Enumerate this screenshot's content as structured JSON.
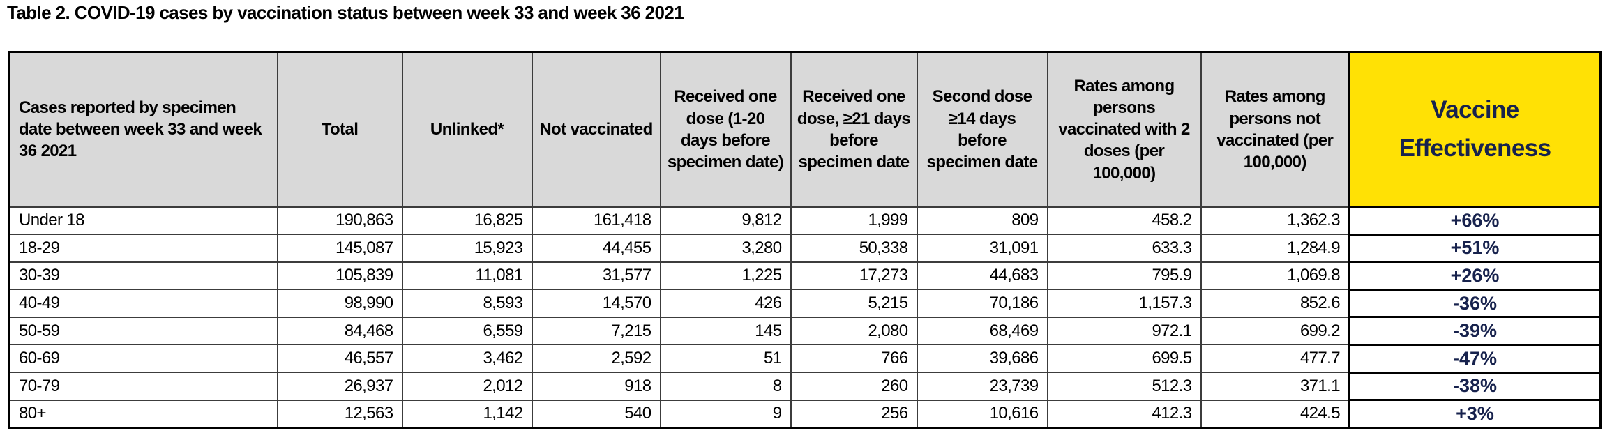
{
  "title": "Table 2. COVID-19 cases by vaccination status between week 33 and week 36 2021",
  "colors": {
    "header_background": "#d9d9d9",
    "ve_header_background": "#ffe105",
    "ve_text_navy": "#17224d",
    "grid_line": "#3c3c3c",
    "outer_border": "#000000"
  },
  "table": {
    "columns": [
      {
        "label": "Cases reported by specimen date between week 33 and week 36 2021",
        "align": "left",
        "highlight": false
      },
      {
        "label": "Total",
        "align": "center",
        "highlight": false
      },
      {
        "label": "Unlinked*",
        "align": "center",
        "highlight": false
      },
      {
        "label": "Not vaccinated",
        "align": "center",
        "highlight": false
      },
      {
        "label": "Received one dose (1-20 days before specimen date)",
        "align": "center",
        "highlight": false
      },
      {
        "label": "Received one dose, ≥21 days before specimen date",
        "align": "center",
        "highlight": false
      },
      {
        "label": "Second dose ≥14 days before specimen date",
        "align": "center",
        "highlight": false
      },
      {
        "label": "Rates among persons vaccinated with 2 doses (per 100,000)",
        "align": "center",
        "highlight": false
      },
      {
        "label": "Rates among persons not vaccinated (per 100,000)",
        "align": "center",
        "highlight": false
      },
      {
        "label": "Vaccine Effectiveness",
        "align": "center",
        "highlight": true
      }
    ],
    "rows": [
      {
        "age_group": "Under 18",
        "values": [
          "190,863",
          "16,825",
          "161,418",
          "9,812",
          "1,999",
          "809",
          "458.2",
          "1,362.3"
        ],
        "vaccine_effectiveness": "+66%"
      },
      {
        "age_group": "18-29",
        "values": [
          "145,087",
          "15,923",
          "44,455",
          "3,280",
          "50,338",
          "31,091",
          "633.3",
          "1,284.9"
        ],
        "vaccine_effectiveness": "+51%"
      },
      {
        "age_group": "30-39",
        "values": [
          "105,839",
          "11,081",
          "31,577",
          "1,225",
          "17,273",
          "44,683",
          "795.9",
          "1,069.8"
        ],
        "vaccine_effectiveness": "+26%"
      },
      {
        "age_group": "40-49",
        "values": [
          "98,990",
          "8,593",
          "14,570",
          "426",
          "5,215",
          "70,186",
          "1,157.3",
          "852.6"
        ],
        "vaccine_effectiveness": "-36%"
      },
      {
        "age_group": "50-59",
        "values": [
          "84,468",
          "6,559",
          "7,215",
          "145",
          "2,080",
          "68,469",
          "972.1",
          "699.2"
        ],
        "vaccine_effectiveness": "-39%"
      },
      {
        "age_group": "60-69",
        "values": [
          "46,557",
          "3,462",
          "2,592",
          "51",
          "766",
          "39,686",
          "699.5",
          "477.7"
        ],
        "vaccine_effectiveness": "-47%"
      },
      {
        "age_group": "70-79",
        "values": [
          "26,937",
          "2,012",
          "918",
          "8",
          "260",
          "23,739",
          "512.3",
          "371.1"
        ],
        "vaccine_effectiveness": "-38%"
      },
      {
        "age_group": "80+",
        "values": [
          "12,563",
          "1,142",
          "540",
          "9",
          "256",
          "10,616",
          "412.3",
          "424.5"
        ],
        "vaccine_effectiveness": "+3%"
      }
    ]
  }
}
